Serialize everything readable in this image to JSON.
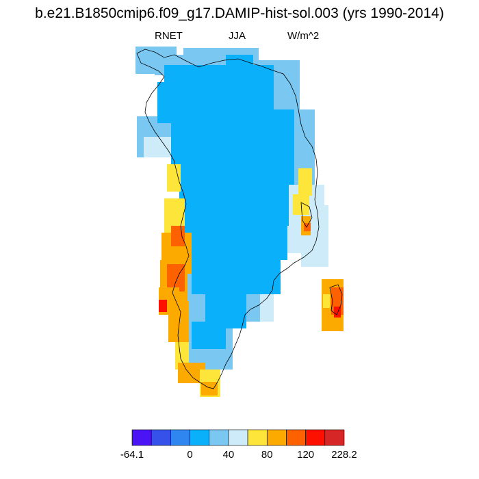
{
  "title": "b.e21.B1850cmip6.f09_g17.DAMIP-hist-sol.003 (yrs 1990-2014)",
  "left_label": "RNET",
  "center_label": "JJA",
  "right_label": "W/m^2",
  "colorbar": {
    "colors": [
      "#4b14f5",
      "#3551ea",
      "#2f86f0",
      "#0bb0fb",
      "#7ac8f2",
      "#cdebf8",
      "#fee53a",
      "#fdaa00",
      "#fe6100",
      "#fe1000",
      "#d72626"
    ],
    "labels": [
      {
        "text": "-64.1",
        "edge": 0
      },
      {
        "text": "0",
        "edge": 3
      },
      {
        "text": "40",
        "edge": 5
      },
      {
        "text": "80",
        "edge": 7
      },
      {
        "text": "120",
        "edge": 9
      },
      {
        "text": "228.2",
        "edge": 11
      }
    ]
  },
  "map_legend_colors": {
    "neg_cold": "#0bb0fb",
    "cool": "#7ac8f2",
    "pale": "#cdebf8",
    "yellow": "#fee53a",
    "orange": "#fdaa00",
    "dark_orange": "#fe6100",
    "red_orange": "#fe1000"
  }
}
